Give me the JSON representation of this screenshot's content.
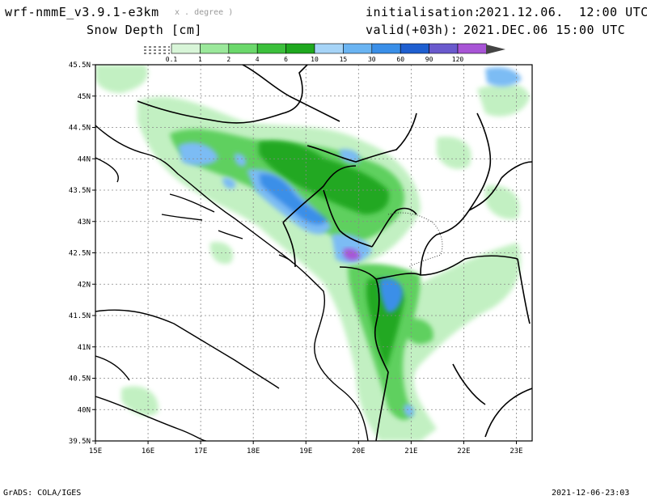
{
  "header": {
    "model": "wrf-nmmE_v3.9.1-e3km",
    "projection": "x . degree )",
    "variable": "Snow Depth [cm]",
    "init_label": "initialisation:",
    "init_value": "2021.12.06.  12:00 UTC",
    "valid_label": "valid(+03h):",
    "valid_value": "2021.DEC.06 15:00 UTC"
  },
  "colorbar": {
    "labels": [
      "0.1",
      "1",
      "2",
      "4",
      "6",
      "10",
      "15",
      "30",
      "60",
      "90",
      "120"
    ],
    "colors": [
      "#d8f5d8",
      "#9be89b",
      "#6bd86b",
      "#3cc03c",
      "#1fa81f",
      "#a6d4f7",
      "#6ab4f2",
      "#3a8fe8",
      "#1f5fd0",
      "#6a5acd",
      "#a855d6"
    ]
  },
  "map": {
    "lat_labels": [
      "45.5N",
      "45N",
      "44.5N",
      "44N",
      "43.5N",
      "43N",
      "42.5N",
      "42N",
      "41.5N",
      "41N",
      "40.5N",
      "40N",
      "39.5N"
    ],
    "lon_labels": [
      "15E",
      "16E",
      "17E",
      "18E",
      "19E",
      "20E",
      "21E",
      "22E",
      "23E"
    ],
    "lon_range": [
      15,
      23.3
    ],
    "lat_range": [
      39.5,
      45.5
    ]
  },
  "footer": {
    "left": "GrADS: COLA/IGES",
    "right": "2021-12-06-23:03"
  }
}
